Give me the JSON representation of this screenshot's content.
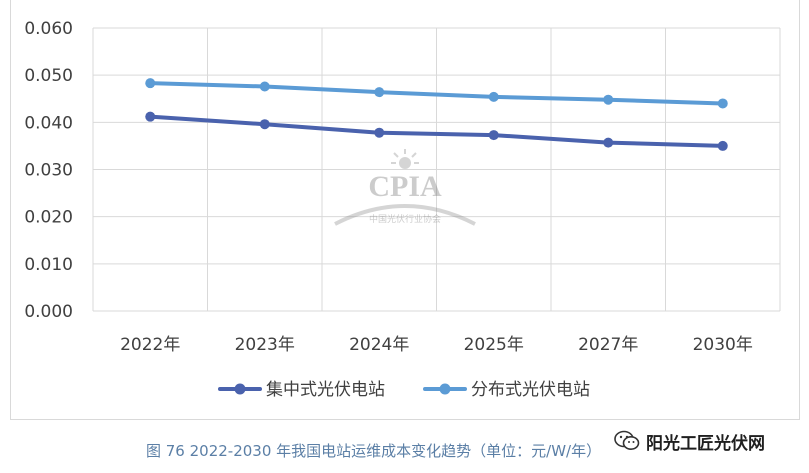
{
  "chart_data": {
    "type": "line",
    "categories": [
      "2022年",
      "2023年",
      "2024年",
      "2025年",
      "2027年",
      "2030年"
    ],
    "series": [
      {
        "name": "集中式光伏电站",
        "values": [
          0.0412,
          0.0396,
          0.0378,
          0.0373,
          0.0357,
          0.035
        ],
        "color": "#4a62ad"
      },
      {
        "name": "分布式光伏电站",
        "values": [
          0.0483,
          0.0476,
          0.0464,
          0.0454,
          0.0448,
          0.044
        ],
        "color": "#5b9bd5"
      }
    ],
    "y_ticks": [
      "0.000",
      "0.010",
      "0.020",
      "0.030",
      "0.040",
      "0.050",
      "0.060"
    ],
    "ylim": [
      0,
      0.06
    ],
    "grid": true,
    "legend_position": "bottom"
  },
  "watermark": {
    "logo": "CPIA",
    "org": "中国光伏行业协会"
  },
  "caption": "图 76   2022-2030 年我国电站运维成本变化趋势（单位：元/W/年）",
  "account": {
    "name": "阳光工匠光伏网",
    "icon": "wechat-icon"
  }
}
